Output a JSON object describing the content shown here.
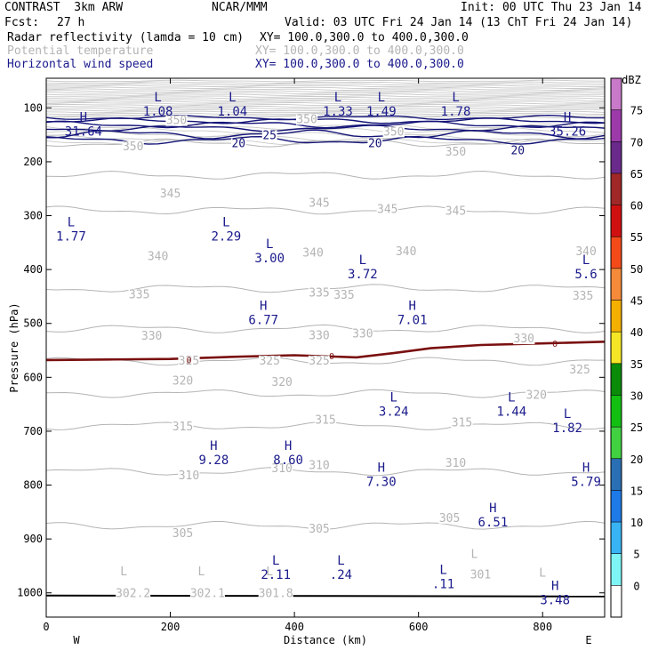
{
  "header": {
    "model": "CONTRAST  3km ARW",
    "org": "NCAR/MMM",
    "init": "Init: 00 UTC Thu 23 Jan 14",
    "fcst_label": "Fcst:",
    "fcst_value": "27 h",
    "valid": "Valid: 03 UTC Fri 24 Jan 14 (13 ChT Fri 24 Jan 14)",
    "fields": [
      {
        "name": "Radar reflectivity (lamda = 10 cm)",
        "xy": "XY= 100.0,300.0 to 400.0,300.0",
        "color": "#000000"
      },
      {
        "name": "Potential temperature",
        "xy": "XY= 100.0,300.0 to 400.0,300.0",
        "color": "#b4b4b4"
      },
      {
        "name": "Horizontal wind speed",
        "xy": "XY= 100.0,300.0 to 400.0,300.0",
        "color": "#1a1a8c"
      }
    ]
  },
  "chart_data": {
    "type": "cross-section contour",
    "xlabel": "Distance (km)",
    "ylabel": "Pressure (hPa)",
    "xlim": [
      0,
      900
    ],
    "ylim": [
      1045,
      45
    ],
    "xticks": [
      0,
      200,
      400,
      600,
      800
    ],
    "yticks": [
      100,
      200,
      300,
      400,
      500,
      600,
      700,
      800,
      900,
      1000
    ],
    "endpoints": {
      "left": "W",
      "right": "E"
    },
    "colorbar": {
      "unit": "dBZ",
      "levels": [
        "0",
        "5",
        "10",
        "15",
        "20",
        "25",
        "30",
        "35",
        "40",
        "45",
        "50",
        "55",
        "60",
        "65",
        "70",
        "75"
      ],
      "colors": [
        "#ffffff",
        "#7ef4f4",
        "#38b4f4",
        "#1e7ae6",
        "#2a6fb4",
        "#40d240",
        "#12c012",
        "#0a8c0a",
        "#f4e626",
        "#f4b000",
        "#f48a3a",
        "#f44a1a",
        "#d01010",
        "#a02828",
        "#6a2a8c",
        "#9c3aaa",
        "#c87ac8"
      ]
    },
    "theta_contours": [
      {
        "value": "350",
        "pressure": 165
      },
      {
        "value": "345",
        "pressure": 225
      },
      {
        "value": "340",
        "pressure": 290
      },
      {
        "value": "335",
        "pressure": 435
      },
      {
        "value": "330",
        "pressure": 510
      },
      {
        "value": "325",
        "pressure": 570
      },
      {
        "value": "320",
        "pressure": 630
      },
      {
        "value": "315",
        "pressure": 690
      },
      {
        "value": "310",
        "pressure": 775
      },
      {
        "value": "305",
        "pressure": 875
      }
    ],
    "theta_labels": [
      {
        "text": "350",
        "x": 210,
        "p": 122
      },
      {
        "text": "350",
        "x": 420,
        "p": 120
      },
      {
        "text": "350",
        "x": 560,
        "p": 143
      },
      {
        "text": "350",
        "x": 140,
        "p": 170
      },
      {
        "text": "350",
        "x": 660,
        "p": 180
      },
      {
        "text": "345",
        "x": 200,
        "p": 258
      },
      {
        "text": "345",
        "x": 440,
        "p": 275
      },
      {
        "text": "345",
        "x": 550,
        "p": 287
      },
      {
        "text": "345",
        "x": 660,
        "p": 290
      },
      {
        "text": "340",
        "x": 180,
        "p": 374
      },
      {
        "text": "340",
        "x": 430,
        "p": 368
      },
      {
        "text": "340",
        "x": 580,
        "p": 365
      },
      {
        "text": "340",
        "x": 870,
        "p": 365
      },
      {
        "text": "335",
        "x": 150,
        "p": 445
      },
      {
        "text": "335",
        "x": 440,
        "p": 442
      },
      {
        "text": "335",
        "x": 480,
        "p": 446
      },
      {
        "text": "335",
        "x": 865,
        "p": 448
      },
      {
        "text": "330",
        "x": 170,
        "p": 522
      },
      {
        "text": "330",
        "x": 440,
        "p": 521
      },
      {
        "text": "330",
        "x": 510,
        "p": 518
      },
      {
        "text": "330",
        "x": 770,
        "p": 527
      },
      {
        "text": "325",
        "x": 230,
        "p": 568
      },
      {
        "text": "325",
        "x": 360,
        "p": 568
      },
      {
        "text": "325",
        "x": 440,
        "p": 568
      },
      {
        "text": "325",
        "x": 860,
        "p": 585
      },
      {
        "text": "320",
        "x": 220,
        "p": 605
      },
      {
        "text": "320",
        "x": 380,
        "p": 608
      },
      {
        "text": "320",
        "x": 790,
        "p": 632
      },
      {
        "text": "315",
        "x": 220,
        "p": 690
      },
      {
        "text": "315",
        "x": 450,
        "p": 678
      },
      {
        "text": "315",
        "x": 670,
        "p": 683
      },
      {
        "text": "310",
        "x": 230,
        "p": 781
      },
      {
        "text": "310",
        "x": 380,
        "p": 768
      },
      {
        "text": "310",
        "x": 440,
        "p": 762
      },
      {
        "text": "310",
        "x": 660,
        "p": 758
      },
      {
        "text": "305",
        "x": 220,
        "p": 888
      },
      {
        "text": "305",
        "x": 440,
        "p": 880
      },
      {
        "text": "305",
        "x": 650,
        "p": 860
      },
      {
        "text": "302.2",
        "x": 140,
        "p": 1000
      },
      {
        "text": "302.1",
        "x": 260,
        "p": 1000
      },
      {
        "text": "301.8",
        "x": 370,
        "p": 1000
      },
      {
        "text": "301",
        "x": 700,
        "p": 965
      }
    ],
    "theta_minima": [
      {
        "symbol": "L",
        "x": 125,
        "p": 977
      },
      {
        "symbol": "L",
        "x": 250,
        "p": 977
      },
      {
        "symbol": "L",
        "x": 360,
        "p": 977
      },
      {
        "symbol": "L",
        "x": 690,
        "p": 945
      },
      {
        "symbol": "L",
        "x": 800,
        "p": 980
      }
    ],
    "wind_contours": [
      {
        "value": "20",
        "label_positions": [
          {
            "x": 310,
            "p": 165
          },
          {
            "x": 530,
            "p": 165
          },
          {
            "x": 760,
            "p": 178
          }
        ]
      },
      {
        "value": "25",
        "label_positions": [
          {
            "x": 360,
            "p": 150
          }
        ]
      }
    ],
    "wind_extrema": [
      {
        "symbol": "L",
        "value": "1.08",
        "x": 180,
        "p": 88
      },
      {
        "symbol": "L",
        "value": "1.04",
        "x": 300,
        "p": 88
      },
      {
        "symbol": "L",
        "value": "1.33",
        "x": 470,
        "p": 88
      },
      {
        "symbol": "L",
        "value": "1.49",
        "x": 540,
        "p": 88
      },
      {
        "symbol": "L",
        "value": "1.78",
        "x": 660,
        "p": 88
      },
      {
        "symbol": "H",
        "value": "31.64",
        "x": 60,
        "p": 125
      },
      {
        "symbol": "H",
        "value": "35.26",
        "x": 840,
        "p": 125
      },
      {
        "symbol": "L",
        "value": "1.77",
        "x": 40,
        "p": 320
      },
      {
        "symbol": "L",
        "value": "2.29",
        "x": 290,
        "p": 320
      },
      {
        "symbol": "L",
        "value": "3.00",
        "x": 360,
        "p": 360
      },
      {
        "symbol": "L",
        "value": "3.72",
        "x": 510,
        "p": 390
      },
      {
        "symbol": "L",
        "value": "5.6",
        "x": 870,
        "p": 390
      },
      {
        "symbol": "H",
        "value": "6.77",
        "x": 350,
        "p": 475
      },
      {
        "symbol": "H",
        "value": "7.01",
        "x": 590,
        "p": 475
      },
      {
        "symbol": "L",
        "value": "3.24",
        "x": 560,
        "p": 645
      },
      {
        "symbol": "L",
        "value": "1.44",
        "x": 750,
        "p": 645
      },
      {
        "symbol": "L",
        "value": "1.82",
        "x": 840,
        "p": 675
      },
      {
        "symbol": "H",
        "value": "9.28",
        "x": 270,
        "p": 735
      },
      {
        "symbol": "H",
        "value": "8.60",
        "x": 390,
        "p": 735
      },
      {
        "symbol": "H",
        "value": "7.30",
        "x": 540,
        "p": 775
      },
      {
        "symbol": "H",
        "value": "5.79",
        "x": 870,
        "p": 775
      },
      {
        "symbol": "H",
        "value": "6.51",
        "x": 720,
        "p": 850
      },
      {
        "symbol": "L",
        "value": "2.11",
        "x": 370,
        "p": 948
      },
      {
        "symbol": "L",
        "value": ".24",
        "x": 475,
        "p": 948
      },
      {
        "symbol": "L",
        "value": ".11",
        "x": 640,
        "p": 965
      },
      {
        "symbol": "H",
        "value": "3.48",
        "x": 820,
        "p": 995
      }
    ],
    "freezing_level": {
      "value": "0",
      "label_positions": [
        {
          "x": 230,
          "p": 567
        },
        {
          "x": 460,
          "p": 560
        },
        {
          "x": 820,
          "p": 537
        }
      ],
      "color": "#7a1010",
      "points": [
        [
          0,
          568
        ],
        [
          100,
          567
        ],
        [
          200,
          566
        ],
        [
          300,
          562
        ],
        [
          400,
          559
        ],
        [
          500,
          563
        ],
        [
          560,
          555
        ],
        [
          620,
          546
        ],
        [
          700,
          540
        ],
        [
          800,
          537
        ],
        [
          900,
          534
        ]
      ]
    },
    "surface_pressure": 1005
  }
}
